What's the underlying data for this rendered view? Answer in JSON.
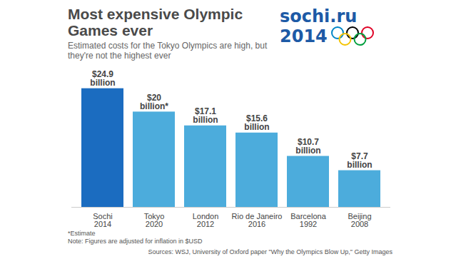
{
  "chart_data": {
    "type": "bar",
    "title": "Most expensive Olympic Games ever",
    "subtitle": "Estimated costs for the Tokyo Olympics are high, but they're not the highest ever",
    "categories": [
      "Sochi\n2014",
      "Tokyo\n2020",
      "London\n2012",
      "Rio de Janeiro\n2016",
      "Barcelona\n1992",
      "Beijing\n2008"
    ],
    "values": [
      24.9,
      20,
      17.1,
      15.6,
      10.7,
      7.7
    ],
    "value_labels": [
      "$24.9\nbillion",
      "$20\nbillion*",
      "$17.1\nbillion",
      "$15.6\nbillion",
      "$10.7\nbillion",
      "$7.7\nbillion"
    ],
    "colors": [
      "#1b6cc0",
      "#4cacdc",
      "#4cacdc",
      "#4cacdc",
      "#4cacdc",
      "#4cacdc"
    ],
    "ylim": [
      0,
      25
    ],
    "yticks": [],
    "data_labels": true,
    "tick_labels": "x",
    "notes": [
      "*Estimate",
      "Note: Figures are adjusted for inflation in $USD"
    ],
    "source": "Sources: WSJ, University of Oxford paper \"Why the Olympics Blow Up,\" Getty Images",
    "logo_text": [
      "sochi.ru",
      "2014"
    ]
  }
}
